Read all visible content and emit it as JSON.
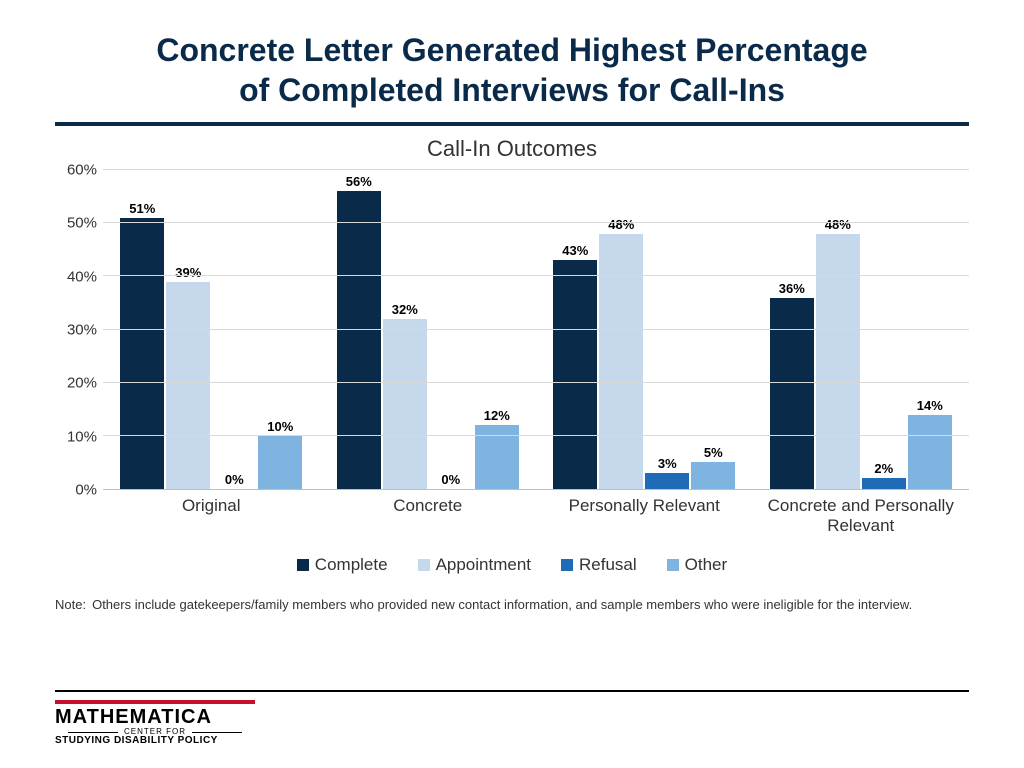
{
  "title_line1": "Concrete Letter Generated Highest Percentage",
  "title_line2": "of Completed Interviews for Call-Ins",
  "chart": {
    "type": "bar",
    "title": "Call-In Outcomes",
    "ylim": [
      0,
      60
    ],
    "ytick_step": 10,
    "y_suffix": "%",
    "grid_color": "#d9d9d9",
    "axis_color": "#bfbfbf",
    "background_color": "#ffffff",
    "categories": [
      "Original",
      "Concrete",
      "Personally Relevant",
      "Concrete and Personally Relevant"
    ],
    "series": [
      {
        "name": "Complete",
        "color": "#0a2a4a"
      },
      {
        "name": "Appointment",
        "color": "#c6d9ec"
      },
      {
        "name": "Refusal",
        "color": "#1f6bb5"
      },
      {
        "name": "Other",
        "color": "#7fb3e0"
      }
    ],
    "data": [
      [
        51,
        39,
        0,
        10
      ],
      [
        56,
        32,
        0,
        12
      ],
      [
        43,
        48,
        3,
        5
      ],
      [
        36,
        48,
        2,
        14
      ]
    ],
    "label_fontsize": 13,
    "axis_fontsize": 15,
    "title_fontsize": 22
  },
  "note_label": "Note:",
  "note_text": "Others include gatekeepers/family members who provided new contact information, and sample members who were ineligible for the interview.",
  "logo": {
    "main": "MATHEMATICA",
    "sub1": "CENTER FOR",
    "sub2": "STUDYING DISABILITY POLICY",
    "red": "#c8102e"
  }
}
